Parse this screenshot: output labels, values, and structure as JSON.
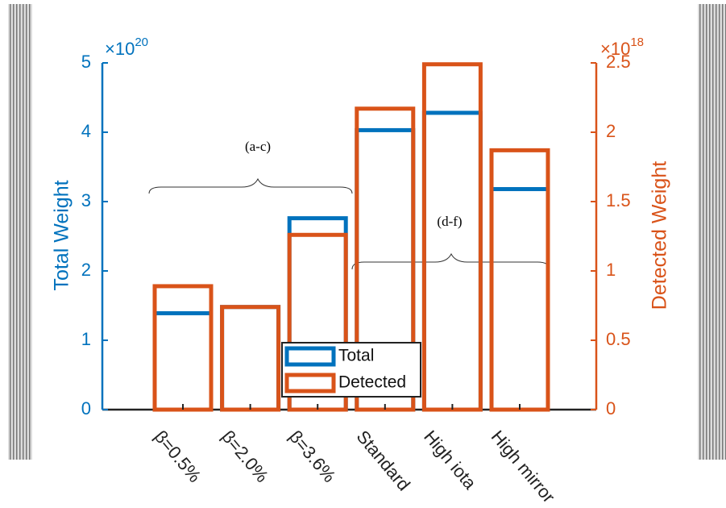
{
  "chart_data": {
    "type": "bar",
    "categories": [
      "β=0.5%",
      "β=2.0%",
      "β=3.6%",
      "Standard",
      "High iota",
      "High mirror"
    ],
    "series": [
      {
        "name": "Total",
        "color": "#0072bd",
        "axis": "y",
        "values": [
          1.39,
          1.48,
          2.76,
          4.03,
          4.28,
          3.18
        ]
      },
      {
        "name": "Detected",
        "color": "#d95319",
        "axis": "y2",
        "values": [
          0.89,
          0.74,
          1.26,
          2.17,
          2.49,
          1.87
        ]
      }
    ],
    "ylabel": "Total Weight",
    "y2label": "Detected Weight",
    "y_multiplier": {
      "base": "×10",
      "exponent": "20"
    },
    "y2_multiplier": {
      "base": "×10",
      "exponent": "18"
    },
    "ylim": [
      0,
      5
    ],
    "yticks": [
      0,
      1,
      2,
      3,
      4,
      5
    ],
    "y2lim": [
      0,
      2.5
    ],
    "y2ticks": [
      0,
      0.5,
      1,
      1.5,
      2,
      2.5
    ],
    "annotations": [
      "(a-c)",
      "(d-f)"
    ],
    "grid": false
  }
}
